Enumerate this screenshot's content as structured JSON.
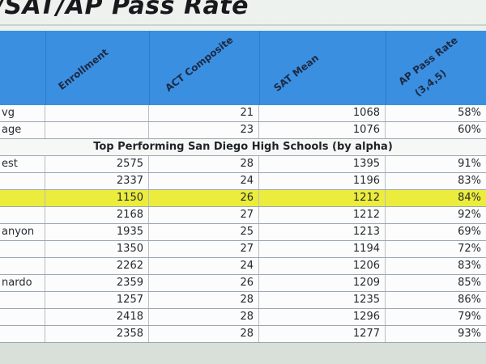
{
  "title": "/SAT/AP Pass Rate",
  "headers": [
    "Enrollment",
    "ACT Composite",
    "SAT Mean",
    "AP Pass Rate",
    "(3,4,5)"
  ],
  "summary_rows": [
    {
      "name": "vg",
      "enrollment": "",
      "act": "21",
      "sat": "1068",
      "ap": "58%"
    },
    {
      "name": "age",
      "enrollment": "",
      "act": "23",
      "sat": "1076",
      "ap": "60%"
    }
  ],
  "section_title": "Top Performing San Diego High Schools (by alpha)",
  "rows": [
    {
      "name": "est",
      "enrollment": "2575",
      "act": "28",
      "sat": "1395",
      "ap": "91%",
      "highlight": false
    },
    {
      "name": "",
      "enrollment": "2337",
      "act": "24",
      "sat": "1196",
      "ap": "83%",
      "highlight": false
    },
    {
      "name": "",
      "enrollment": "1150",
      "act": "26",
      "sat": "1212",
      "ap": "84%",
      "highlight": true
    },
    {
      "name": "",
      "enrollment": "2168",
      "act": "27",
      "sat": "1212",
      "ap": "92%",
      "highlight": false
    },
    {
      "name": "anyon",
      "enrollment": "1935",
      "act": "25",
      "sat": "1213",
      "ap": "69%",
      "highlight": false
    },
    {
      "name": "",
      "enrollment": "1350",
      "act": "27",
      "sat": "1194",
      "ap": "72%",
      "highlight": false
    },
    {
      "name": "",
      "enrollment": "2262",
      "act": "24",
      "sat": "1206",
      "ap": "83%",
      "highlight": false
    },
    {
      "name": "nardo",
      "enrollment": "2359",
      "act": "26",
      "sat": "1209",
      "ap": "85%",
      "highlight": false
    },
    {
      "name": "",
      "enrollment": "1257",
      "act": "28",
      "sat": "1235",
      "ap": "86%",
      "highlight": false
    },
    {
      "name": "",
      "enrollment": "2418",
      "act": "28",
      "sat": "1296",
      "ap": "79%",
      "highlight": false
    },
    {
      "name": "",
      "enrollment": "2358",
      "act": "28",
      "sat": "1277",
      "ap": "93%",
      "highlight": false
    }
  ],
  "colors": {
    "header": "#3b8fe0",
    "highlight": "#ecec3c"
  }
}
